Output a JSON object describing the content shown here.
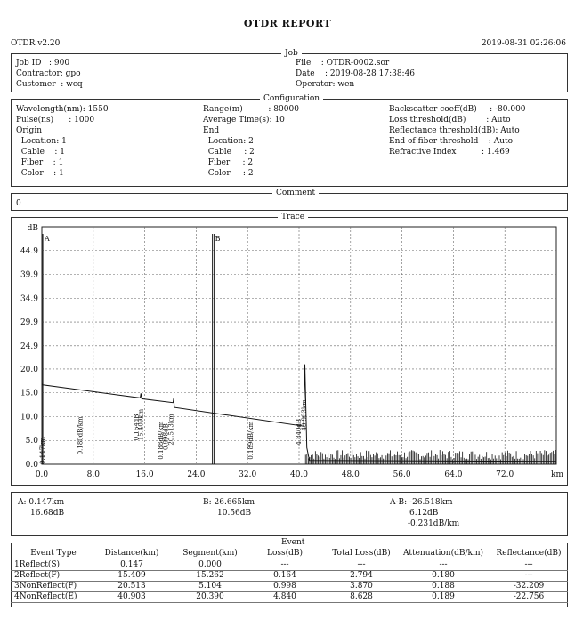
{
  "title": "OTDR REPORT",
  "version": "OTDR v2.20",
  "datetime": "2019-08-31 02:26:06",
  "job": {
    "section_title": "Job",
    "job_id": "Job ID   : 900",
    "contractor": "Contractor: gpo",
    "customer": "Customer  : wcq",
    "file": "File    : OTDR-0002.sor",
    "date": "Date    : 2019-08-28 17:38:46",
    "operator": "Operator: wen"
  },
  "config": {
    "section_title": "Configuration",
    "col1": [
      "Wavelength(nm): 1550",
      "Pulse(ns)      : 1000",
      "Origin",
      "  Location: 1",
      "  Cable    : 1",
      "  Fiber    : 1",
      "  Color    : 1"
    ],
    "col2": [
      "Range(m)          : 80000",
      "Average Time(s): 10",
      "End",
      "  Location: 2",
      "  Cable     : 2",
      "  Fiber     : 2",
      "  Color     : 2"
    ],
    "col3": [
      "Backscatter coeff(dB)     : -80.000",
      "Loss threshold(dB)        : Auto",
      "Reflectance threshold(dB): Auto",
      "End of fiber threshold    : Auto",
      "Refractive Index          : 1.469"
    ]
  },
  "comment": {
    "section_title": "Comment",
    "text": "0"
  },
  "trace": {
    "section_title": "Trace"
  },
  "markers": {
    "a": "A: 0.147km",
    "a2": "16.68dB",
    "b": "B: 26.665km",
    "b2": "10.56dB",
    "ab": "A-B: -26.518km",
    "ab2": "6.12dB",
    "ab3": "-0.231dB/km"
  },
  "events": {
    "section_title": "Event",
    "headers": [
      "Event Type",
      "Distance(km)",
      "Segment(km)",
      "Loss(dB)",
      "Total Loss(dB)",
      "Attenuation(dB/km)",
      "Reflectance(dB)"
    ],
    "rows": [
      [
        "1Reflect(S)",
        "0.147",
        "0.000",
        "---",
        "---",
        "---",
        "---"
      ],
      [
        "2Reflect(F)",
        "15.409",
        "15.262",
        "0.164",
        "2.794",
        "0.180",
        "---"
      ],
      [
        "3NonReflect(F)",
        "20.513",
        "5.104",
        "0.998",
        "3.870",
        "0.188",
        "-32.209"
      ],
      [
        "4NonReflect(E)",
        "40.903",
        "20.390",
        "4.840",
        "8.628",
        "0.189",
        "-22.756"
      ]
    ]
  },
  "chart_data": {
    "type": "line",
    "title": "Trace",
    "xlabel": "km",
    "ylabel": "dB",
    "xlim": [
      0,
      80
    ],
    "ylim": [
      0,
      49.9
    ],
    "xticks": [
      "0.0",
      "8.0",
      "16.0",
      "24.0",
      "32.0",
      "40.0",
      "48.0",
      "56.0",
      "64.0",
      "72.0"
    ],
    "yticks": [
      "0.0",
      "5.0",
      "10.0",
      "15.0",
      "20.0",
      "24.9",
      "29.9",
      "34.9",
      "39.9",
      "44.9"
    ],
    "series": [
      {
        "x": [
          0.0,
          0.147,
          15.3,
          15.409,
          15.55,
          20.4,
          20.513,
          20.6,
          40.7,
          40.9,
          41.2,
          41.6,
          80.0
        ],
        "y": [
          16.9,
          16.68,
          13.95,
          14.9,
          13.75,
          12.95,
          13.9,
          11.95,
          8.0,
          21.0,
          3.5,
          0.8,
          0.6
        ]
      }
    ],
    "noise": {
      "x_start": 41.0,
      "x_end": 80.0,
      "amplitude": 2.0
    },
    "cursors": [
      {
        "label": "A",
        "x": 0.147
      },
      {
        "label": "B",
        "x": 26.665
      }
    ],
    "annotations": [
      "0.147km",
      "0.180dB/km",
      "0.164dB",
      "15.409km",
      "0.188dB/km",
      "0.998dB",
      "20.513km",
      "0.189dB/km",
      "4.840dB",
      "40.903km"
    ]
  }
}
